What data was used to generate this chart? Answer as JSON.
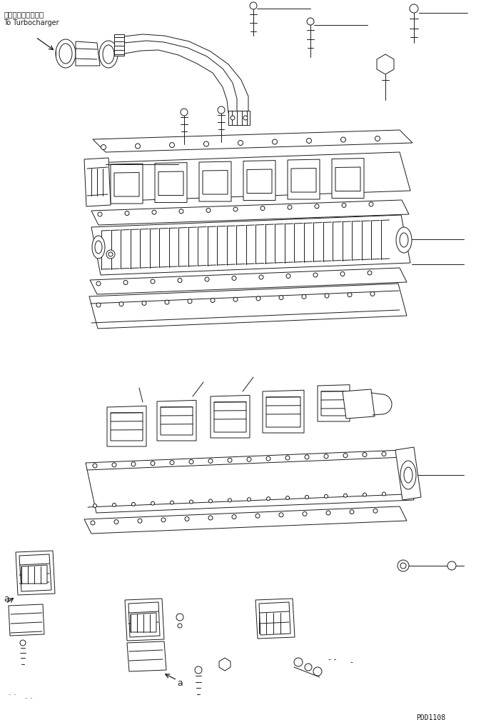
{
  "bg_color": "#ffffff",
  "lc": "#1a1a1a",
  "lw": 0.7,
  "title_jp": "ターボチャージャへ",
  "title_en": "To Turbocharger",
  "part_code": "PDD1108",
  "label_a": "a",
  "figsize": [
    6.74,
    10.08
  ],
  "dpi": 100
}
